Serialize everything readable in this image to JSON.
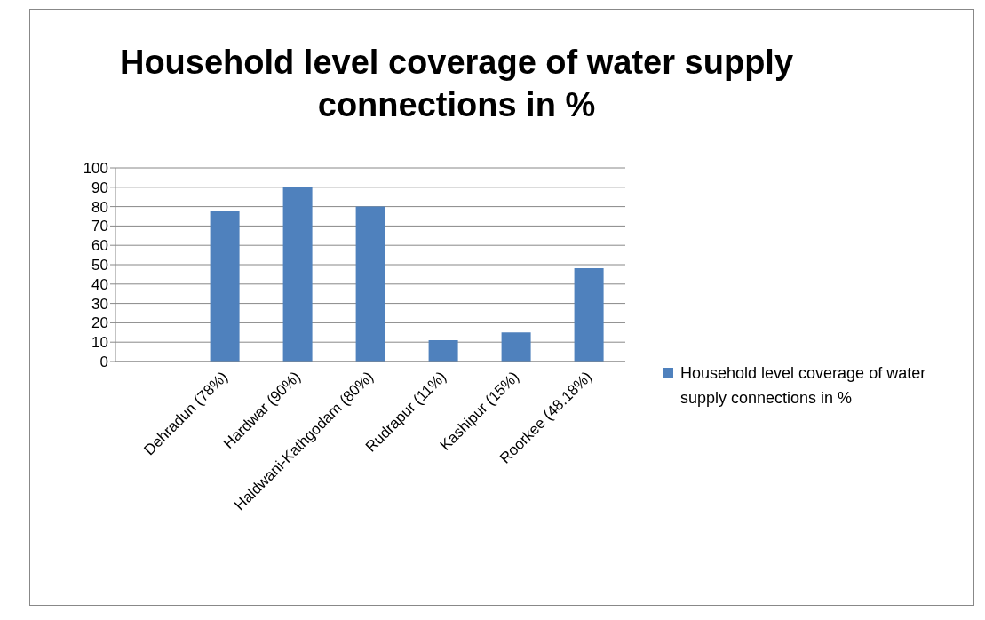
{
  "chart_data": {
    "type": "bar",
    "title": "Household level coverage of water supply connections in %",
    "categories": [
      null,
      "Dehradun (78%)",
      "Hardwar (90%)",
      "Haldwani-Kathgodam  (80%)",
      "Rudrapur (11%)",
      "Kashipur (15%)",
      "Roorkee  (48.18%)"
    ],
    "series": [
      {
        "name": "Household level coverage of water supply connections in %",
        "color": "#4f81bd",
        "values": [
          null,
          78,
          90,
          80,
          11,
          15,
          48.18
        ]
      }
    ],
    "ylim": [
      0,
      100
    ],
    "yticks": [
      0,
      10,
      20,
      30,
      40,
      50,
      60,
      70,
      80,
      90,
      100
    ],
    "grid": "y",
    "legend": "right"
  }
}
